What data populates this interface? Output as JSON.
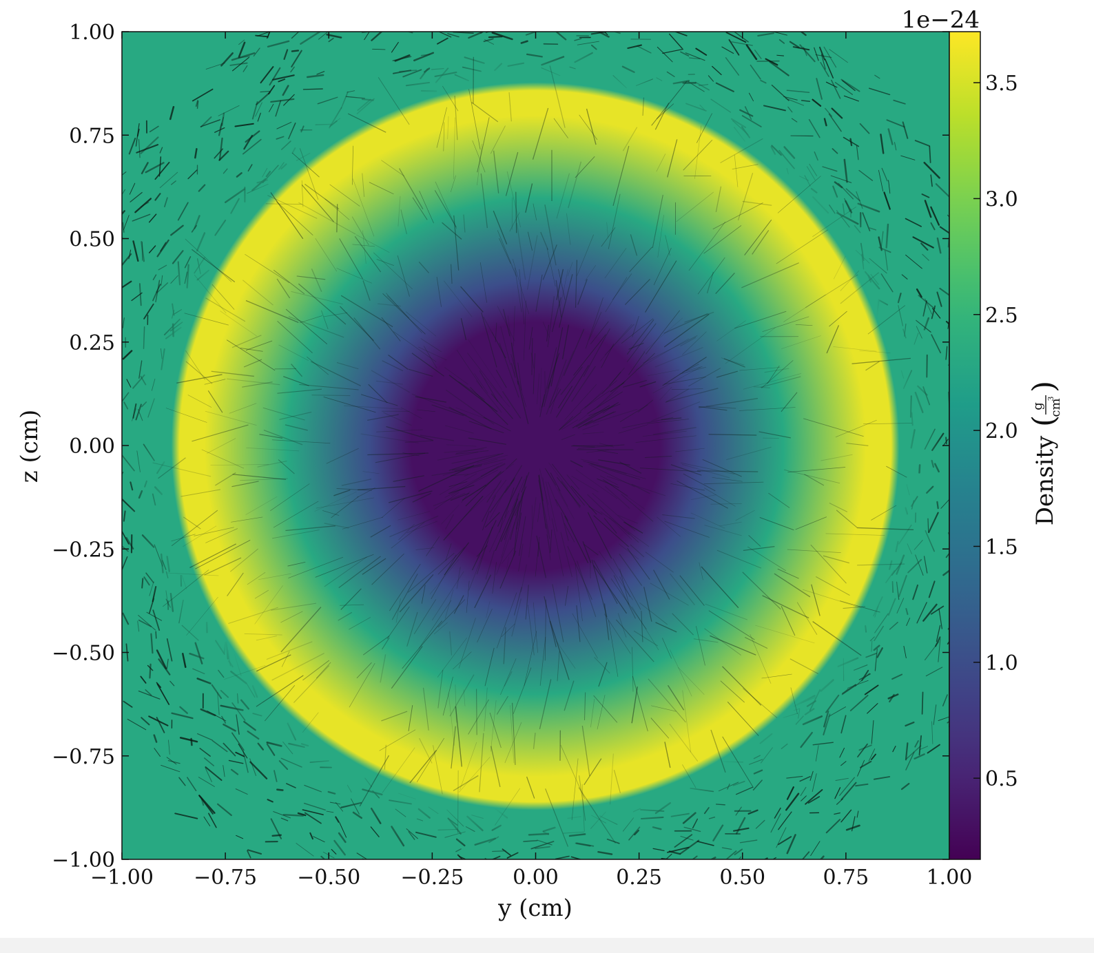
{
  "chart_data": {
    "type": "heatmap",
    "title": "",
    "xlabel": "y  (cm)",
    "ylabel": "z  (cm)",
    "xlim": [
      -1.0,
      1.0
    ],
    "ylim": [
      -1.0,
      1.0
    ],
    "x_ticks": [
      "-1.00",
      "-0.75",
      "-0.50",
      "-0.25",
      "0.00",
      "0.25",
      "0.50",
      "0.75",
      "1.00"
    ],
    "y_ticks": [
      "1.00",
      "0.75",
      "0.50",
      "0.25",
      "0.00",
      "-0.25",
      "-0.50",
      "-0.75",
      "-1.00"
    ],
    "x_tick_values": [
      -1.0,
      -0.75,
      -0.5,
      -0.25,
      0.0,
      0.25,
      0.5,
      0.75,
      1.0
    ],
    "y_tick_values": [
      1.0,
      0.75,
      0.5,
      0.25,
      0.0,
      -0.25,
      -0.5,
      -0.75,
      -1.0
    ],
    "colorbar": {
      "label": "Density",
      "unit_numerator": "g",
      "unit_denominator": "cm",
      "unit_exponent": "3",
      "offset_text": "1e−24",
      "colormap": "viridis",
      "range": [
        0.15,
        3.72
      ],
      "ticks": [
        "0.5",
        "1.0",
        "1.5",
        "2.0",
        "2.5",
        "3.0",
        "3.5"
      ],
      "tick_values": [
        0.5,
        1.0,
        1.5,
        2.0,
        2.5,
        3.0,
        3.5
      ]
    },
    "density_profile": {
      "description_points_radius_cm": [
        0.0,
        0.3,
        0.4,
        0.6,
        0.8,
        0.86,
        0.88,
        1.0
      ],
      "density_values": [
        0.3,
        0.3,
        1.0,
        2.3,
        3.6,
        3.6,
        2.3,
        2.3
      ]
    },
    "background_value": 2.3,
    "overlay": "line integral convolution streamlines",
    "grid": false,
    "colors": {
      "background_field": "#4fa87f",
      "low": "#3b1e5e",
      "ring": "#f5e34a",
      "streak": "#0b1b14"
    }
  }
}
